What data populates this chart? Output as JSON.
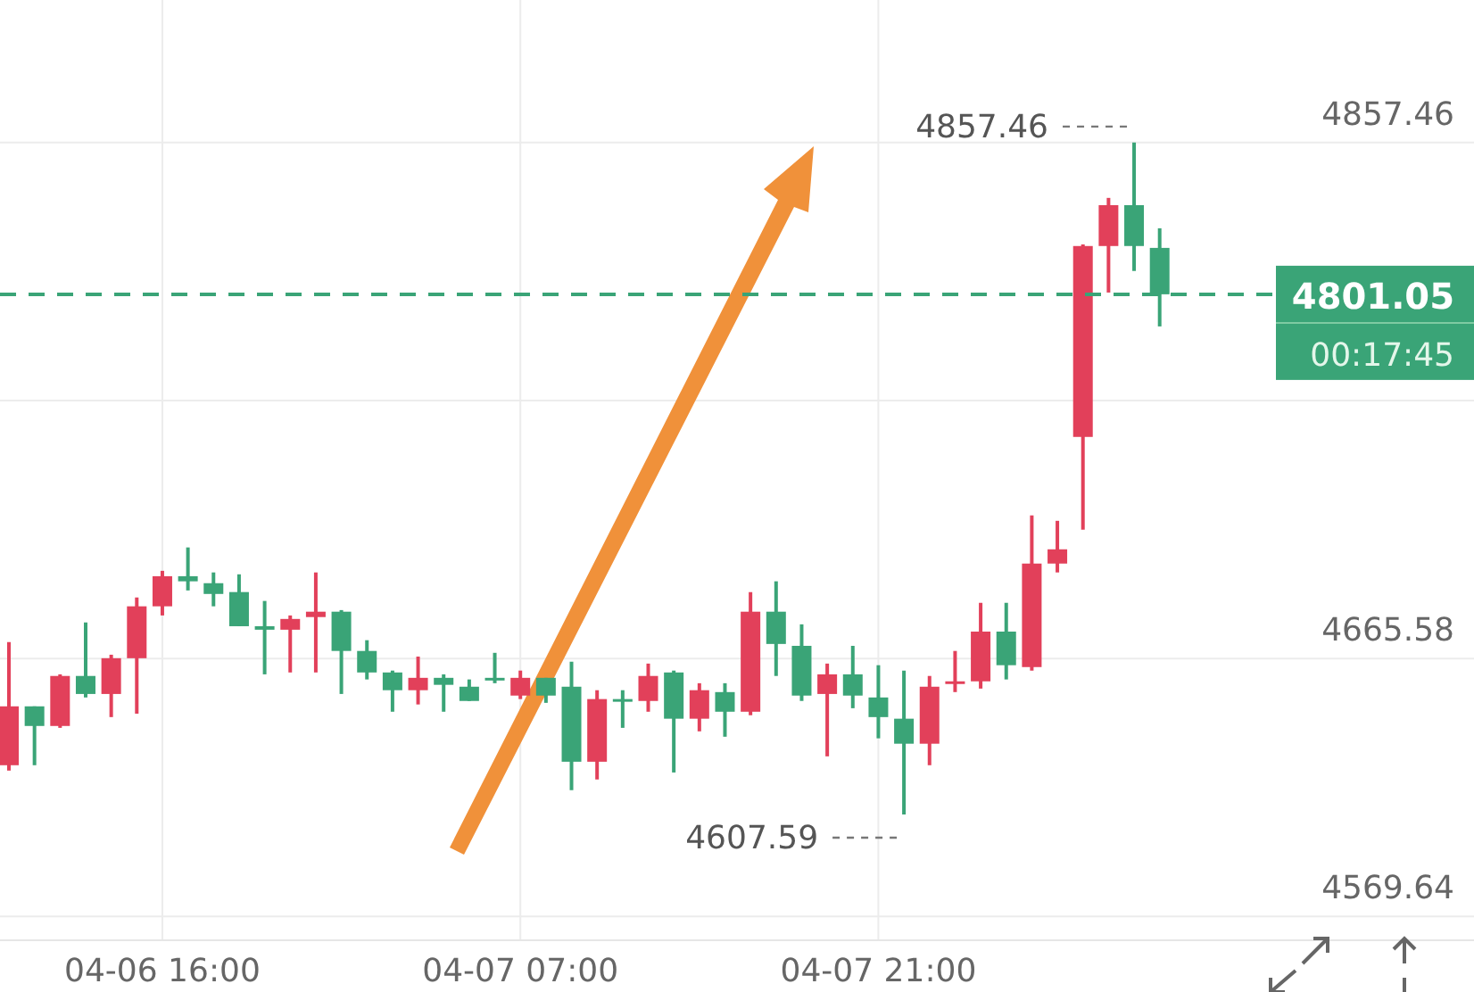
{
  "chart_data": {
    "type": "candlestick",
    "categories": [
      null,
      null,
      null,
      null,
      null,
      null,
      "04-06 16:00",
      null,
      null,
      null,
      null,
      null,
      null,
      null,
      null,
      null,
      null,
      null,
      null,
      null,
      "04-07 07:00",
      null,
      null,
      null,
      null,
      null,
      null,
      null,
      null,
      null,
      null,
      null,
      null,
      null,
      "04-07 21:00",
      null,
      null,
      null,
      null,
      null,
      null,
      null,
      null,
      null,
      null,
      null
    ],
    "ohlc": [
      [
        4625.9,
        4671.7,
        4623.9,
        4647.8
      ],
      [
        4647.8,
        4647.8,
        4625.9,
        4640.5
      ],
      [
        4640.5,
        4659.7,
        4639.8,
        4659.1
      ],
      [
        4659.1,
        4679.0,
        4651.1,
        4652.4
      ],
      [
        4652.4,
        4667.0,
        4643.8,
        4665.7
      ],
      [
        4665.7,
        4688.3,
        4645.1,
        4685.0
      ],
      [
        4685.0,
        4698.2,
        4681.6,
        4696.2
      ],
      [
        4696.2,
        4706.9,
        4690.9,
        4694.3
      ],
      [
        4693.6,
        4697.6,
        4685.0,
        4689.6
      ],
      [
        4690.3,
        4696.9,
        4677.6,
        4677.6
      ],
      [
        4677.6,
        4687.0,
        4659.7,
        4676.3
      ],
      [
        4676.3,
        4681.6,
        4660.4,
        4680.3
      ],
      [
        4681.0,
        4697.6,
        4660.4,
        4683.0
      ],
      [
        4683.0,
        4683.6,
        4652.4,
        4668.4
      ],
      [
        4668.4,
        4672.4,
        4657.8,
        4660.4
      ],
      [
        4660.4,
        4661.1,
        4645.8,
        4653.8
      ],
      [
        4653.8,
        4666.3,
        4648.5,
        4658.4
      ],
      [
        4658.4,
        4659.7,
        4645.8,
        4655.8
      ],
      [
        4655.1,
        4657.8,
        4649.8,
        4649.8
      ],
      [
        4658.4,
        4667.7,
        4656.4,
        4657.8
      ],
      [
        4651.8,
        4661.1,
        4650.5,
        4658.4
      ],
      [
        4658.4,
        4658.4,
        4649.1,
        4651.8
      ],
      [
        4655.1,
        4664.4,
        4616.6,
        4627.2
      ],
      [
        4627.2,
        4653.8,
        4620.6,
        4650.5
      ],
      [
        4650.5,
        4653.8,
        4639.8,
        4649.8
      ],
      [
        4649.8,
        4663.7,
        4645.8,
        4659.1
      ],
      [
        4660.4,
        4661.1,
        4623.2,
        4643.2
      ],
      [
        4643.2,
        4656.4,
        4638.5,
        4653.8
      ],
      [
        4653.1,
        4656.4,
        4636.5,
        4645.8
      ],
      [
        4645.8,
        4690.3,
        4644.5,
        4683.0
      ],
      [
        4683.0,
        4694.3,
        4659.1,
        4671.0
      ],
      [
        4670.3,
        4678.3,
        4649.8,
        4651.8
      ],
      [
        4652.4,
        4663.7,
        4629.2,
        4659.7
      ],
      [
        4659.7,
        4670.3,
        4647.1,
        4651.8
      ],
      [
        4651.1,
        4663.1,
        4635.9,
        4643.8
      ],
      [
        4643.2,
        4661.1,
        4607.59,
        4633.9
      ],
      [
        4633.9,
        4659.1,
        4625.9,
        4655.1
      ],
      [
        4656.4,
        4668.4,
        4653.1,
        4657.1
      ],
      [
        4657.1,
        4686.3,
        4654.4,
        4675.6
      ],
      [
        4675.6,
        4686.3,
        4657.8,
        4663.1
      ],
      [
        4662.4,
        4718.8,
        4661.1,
        4700.9
      ],
      [
        4700.9,
        4716.8,
        4697.6,
        4706.2
      ],
      [
        4748.0,
        4819.6,
        4713.5,
        4819.0
      ],
      [
        4819.0,
        4836.9,
        4801.7,
        4834.2
      ],
      [
        4834.2,
        4857.46,
        4809.7,
        4819.0
      ],
      [
        4818.3,
        4825.6,
        4789.1,
        4801.05
      ]
    ],
    "colors": [
      "#e2405a",
      "#3aa477",
      "#e2405a",
      "#3aa477",
      "#e2405a",
      "#e2405a",
      "#e2405a",
      "#3aa477",
      "#3aa477",
      "#3aa477",
      "#3aa477",
      "#e2405a",
      "#e2405a",
      "#3aa477",
      "#3aa477",
      "#3aa477",
      "#e2405a",
      "#3aa477",
      "#3aa477",
      "#3aa477",
      "#e2405a",
      "#3aa477",
      "#3aa477",
      "#e2405a",
      "#3aa477",
      "#e2405a",
      "#3aa477",
      "#e2405a",
      "#3aa477",
      "#e2405a",
      "#3aa477",
      "#3aa477",
      "#e2405a",
      "#3aa477",
      "#3aa477",
      "#3aa477",
      "#e2405a",
      "#e2405a",
      "#e2405a",
      "#3aa477",
      "#e2405a",
      "#e2405a",
      "#e2405a",
      "#e2405a",
      "#3aa477",
      "#3aa477"
    ],
    "ylim": [
      4560.8,
      4910.5
    ],
    "yticks": [
      4569.64,
      4665.58,
      {
        "value": 4761.52,
        "label": null
      },
      4857.46
    ],
    "grid": true,
    "ref_lines": [
      {
        "axis": "y",
        "value": 4801.05,
        "label": "4801.05",
        "color": "#3aa477",
        "line_style": "dashed"
      }
    ],
    "annotations": [
      "4857.46",
      "4607.59",
      "00:17:45"
    ]
  }
}
